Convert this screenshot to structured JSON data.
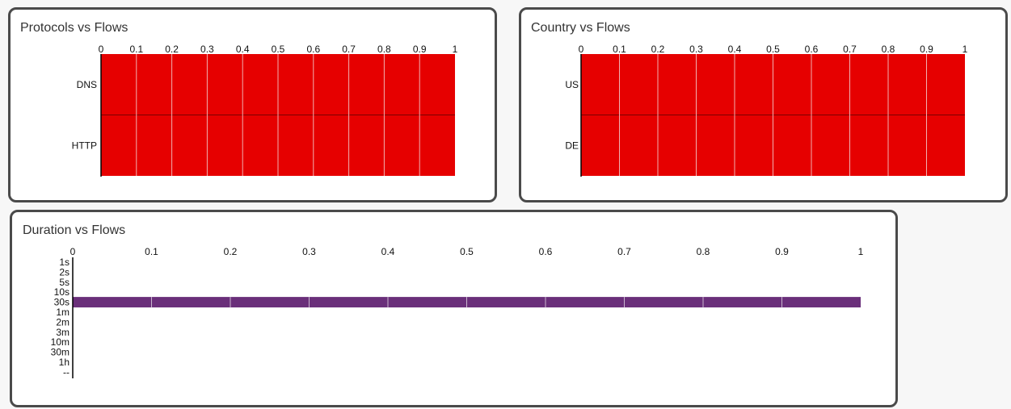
{
  "colors": {
    "page_background": "#f7f7f7",
    "panel_background": "#ffffff",
    "panel_border": "#4a4a4a",
    "protocols_bar": "#e60000",
    "country_bar": "#e60000",
    "duration_bar": "#6a2f7a",
    "bar_separator": "#f0b0b0",
    "row_divider": "#7a0000"
  },
  "panels": {
    "protocols": {
      "title": "Protocols vs Flows"
    },
    "country": {
      "title": "Country vs Flows"
    },
    "duration": {
      "title": "Duration vs Flows"
    }
  },
  "chart_data": [
    {
      "id": "protocols",
      "type": "bar",
      "orientation": "horizontal",
      "title": "Protocols vs Flows",
      "categories": [
        "DNS",
        "HTTP"
      ],
      "values": [
        1,
        1
      ],
      "xlim": [
        0,
        1
      ],
      "x_ticks": [
        "0",
        "0.1",
        "0.2",
        "0.3",
        "0.4",
        "0.5",
        "0.6",
        "0.7",
        "0.8",
        "0.9",
        "1"
      ],
      "x_axis_position": "top",
      "legend": "none"
    },
    {
      "id": "country",
      "type": "bar",
      "orientation": "horizontal",
      "title": "Country vs Flows",
      "categories": [
        "US",
        "DE"
      ],
      "values": [
        1,
        1
      ],
      "xlim": [
        0,
        1
      ],
      "x_ticks": [
        "0",
        "0.1",
        "0.2",
        "0.3",
        "0.4",
        "0.5",
        "0.6",
        "0.7",
        "0.8",
        "0.9",
        "1"
      ],
      "x_axis_position": "top",
      "legend": "none"
    },
    {
      "id": "duration",
      "type": "bar",
      "orientation": "horizontal",
      "title": "Duration vs Flows",
      "categories": [
        "1s",
        "2s",
        "5s",
        "10s",
        "30s",
        "1m",
        "2m",
        "3m",
        "10m",
        "30m",
        "1h",
        "--"
      ],
      "values": [
        0,
        0,
        0,
        0,
        1,
        0,
        0,
        0,
        0,
        0,
        0,
        0
      ],
      "xlim": [
        0,
        1
      ],
      "x_ticks": [
        "0",
        "0.1",
        "0.2",
        "0.3",
        "0.4",
        "0.5",
        "0.6",
        "0.7",
        "0.8",
        "0.9",
        "1"
      ],
      "x_axis_position": "top",
      "legend": "none"
    }
  ]
}
